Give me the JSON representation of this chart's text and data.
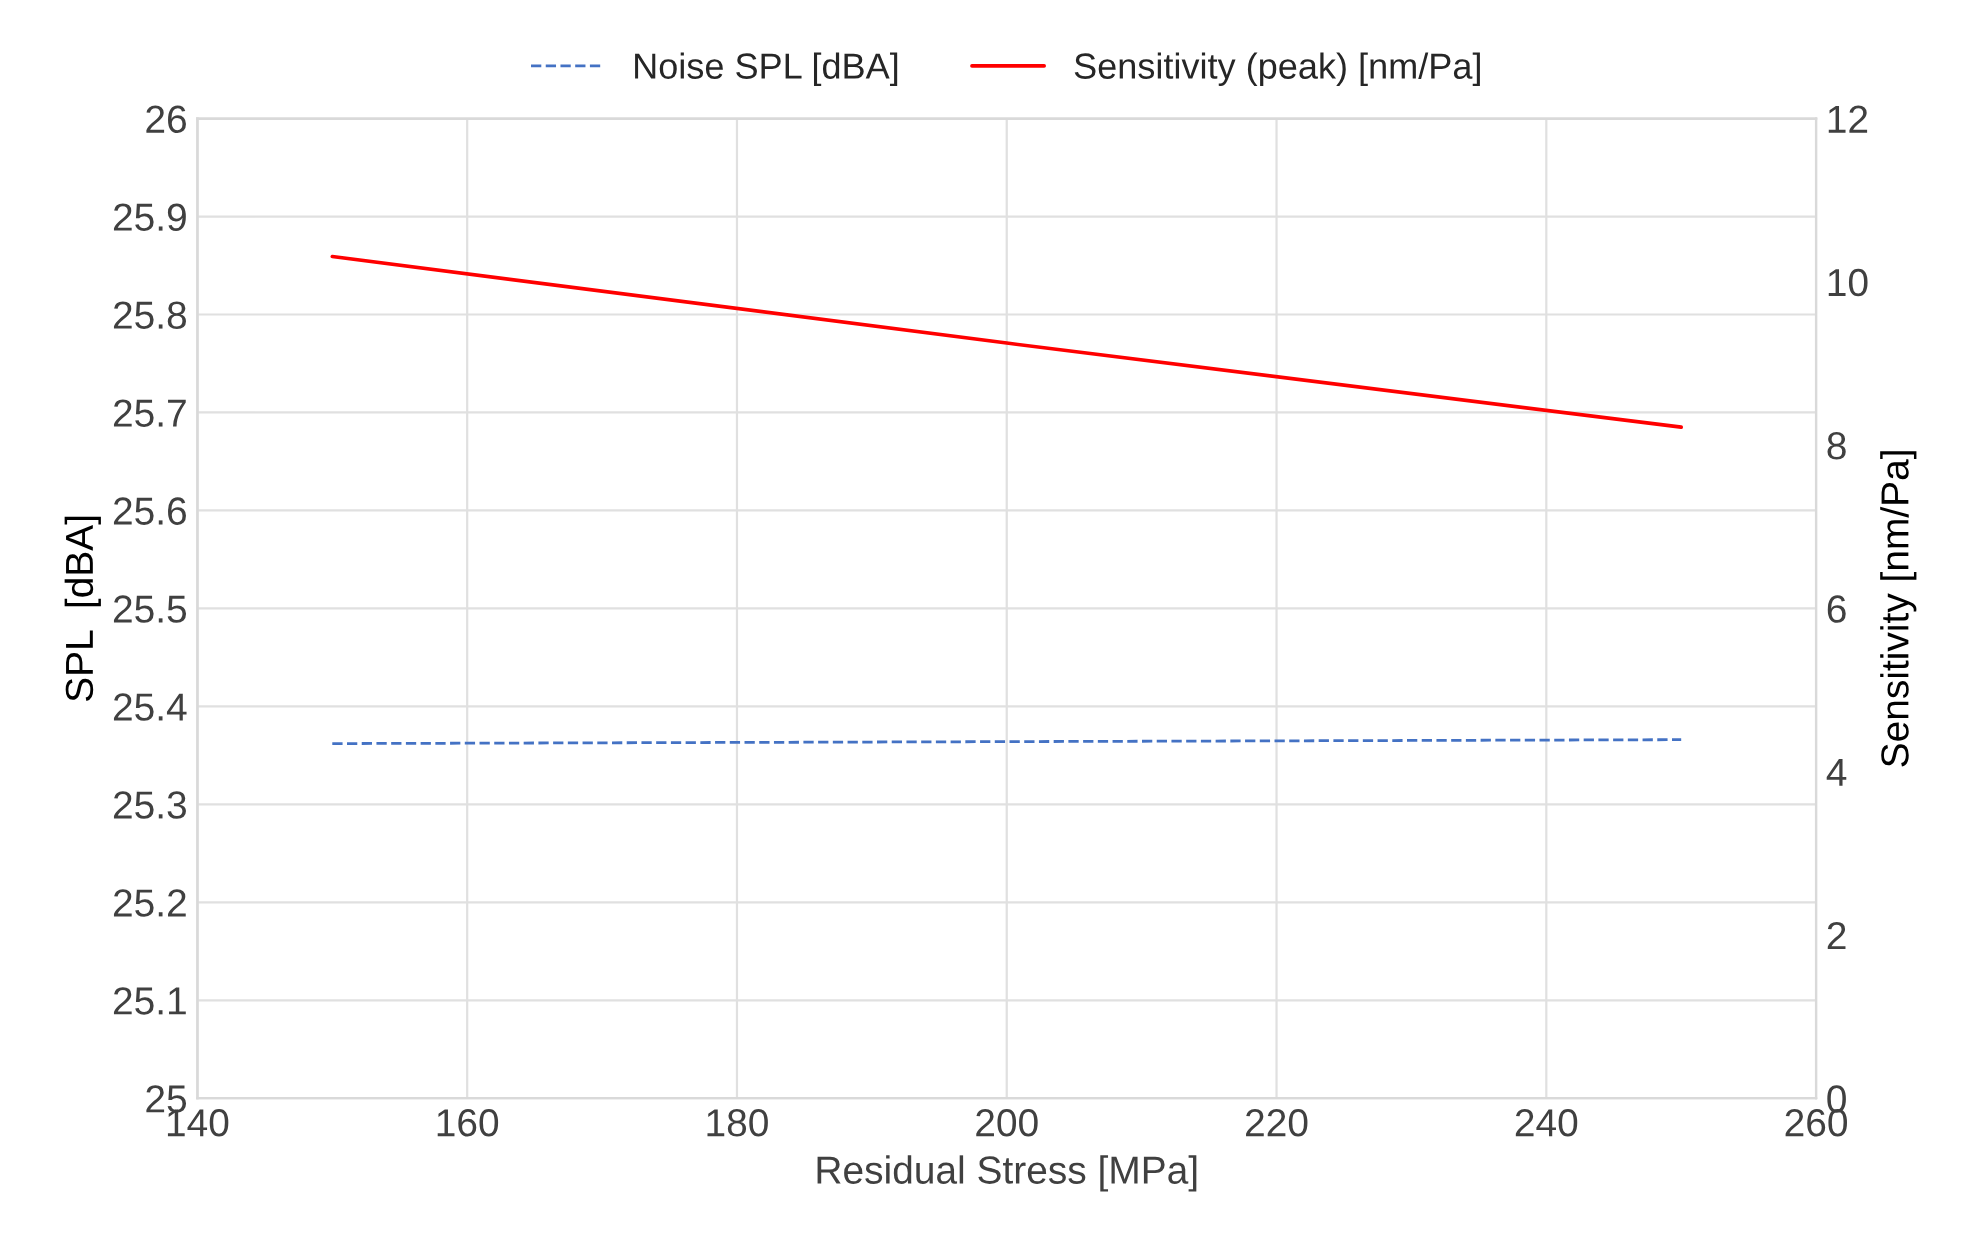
{
  "chart_data": {
    "type": "line",
    "xlabel": "Residual Stress [MPa]",
    "ylabel": "SPL  [dBA]",
    "y2label": "Sensitivity [nm/Pa]",
    "x": [
      150,
      200,
      250
    ],
    "series": [
      {
        "name": "Noise SPL [dBA]",
        "color": "#4472c4",
        "values": [
          25.362,
          25.364,
          25.366
        ],
        "line_style": "dashed"
      },
      {
        "name": "Sensitivity (peak) [nm/Pa]",
        "color": "#ff0000",
        "values": [
          10.31,
          9.25,
          8.22
        ],
        "axis": "y2",
        "line_style": "solid"
      }
    ],
    "xlim": [
      140,
      260
    ],
    "xticks": [
      140,
      160,
      180,
      200,
      220,
      240,
      260
    ],
    "ylim": [
      25,
      26
    ],
    "yticks": [
      25,
      25.1,
      25.2,
      25.3,
      25.4,
      25.5,
      25.6,
      25.7,
      25.8,
      25.9,
      26
    ],
    "y2lim": [
      0,
      12
    ],
    "y2ticks": [
      0,
      2,
      4,
      6,
      8,
      10,
      12
    ],
    "grid": true,
    "legend": "top",
    "marker": "none"
  }
}
